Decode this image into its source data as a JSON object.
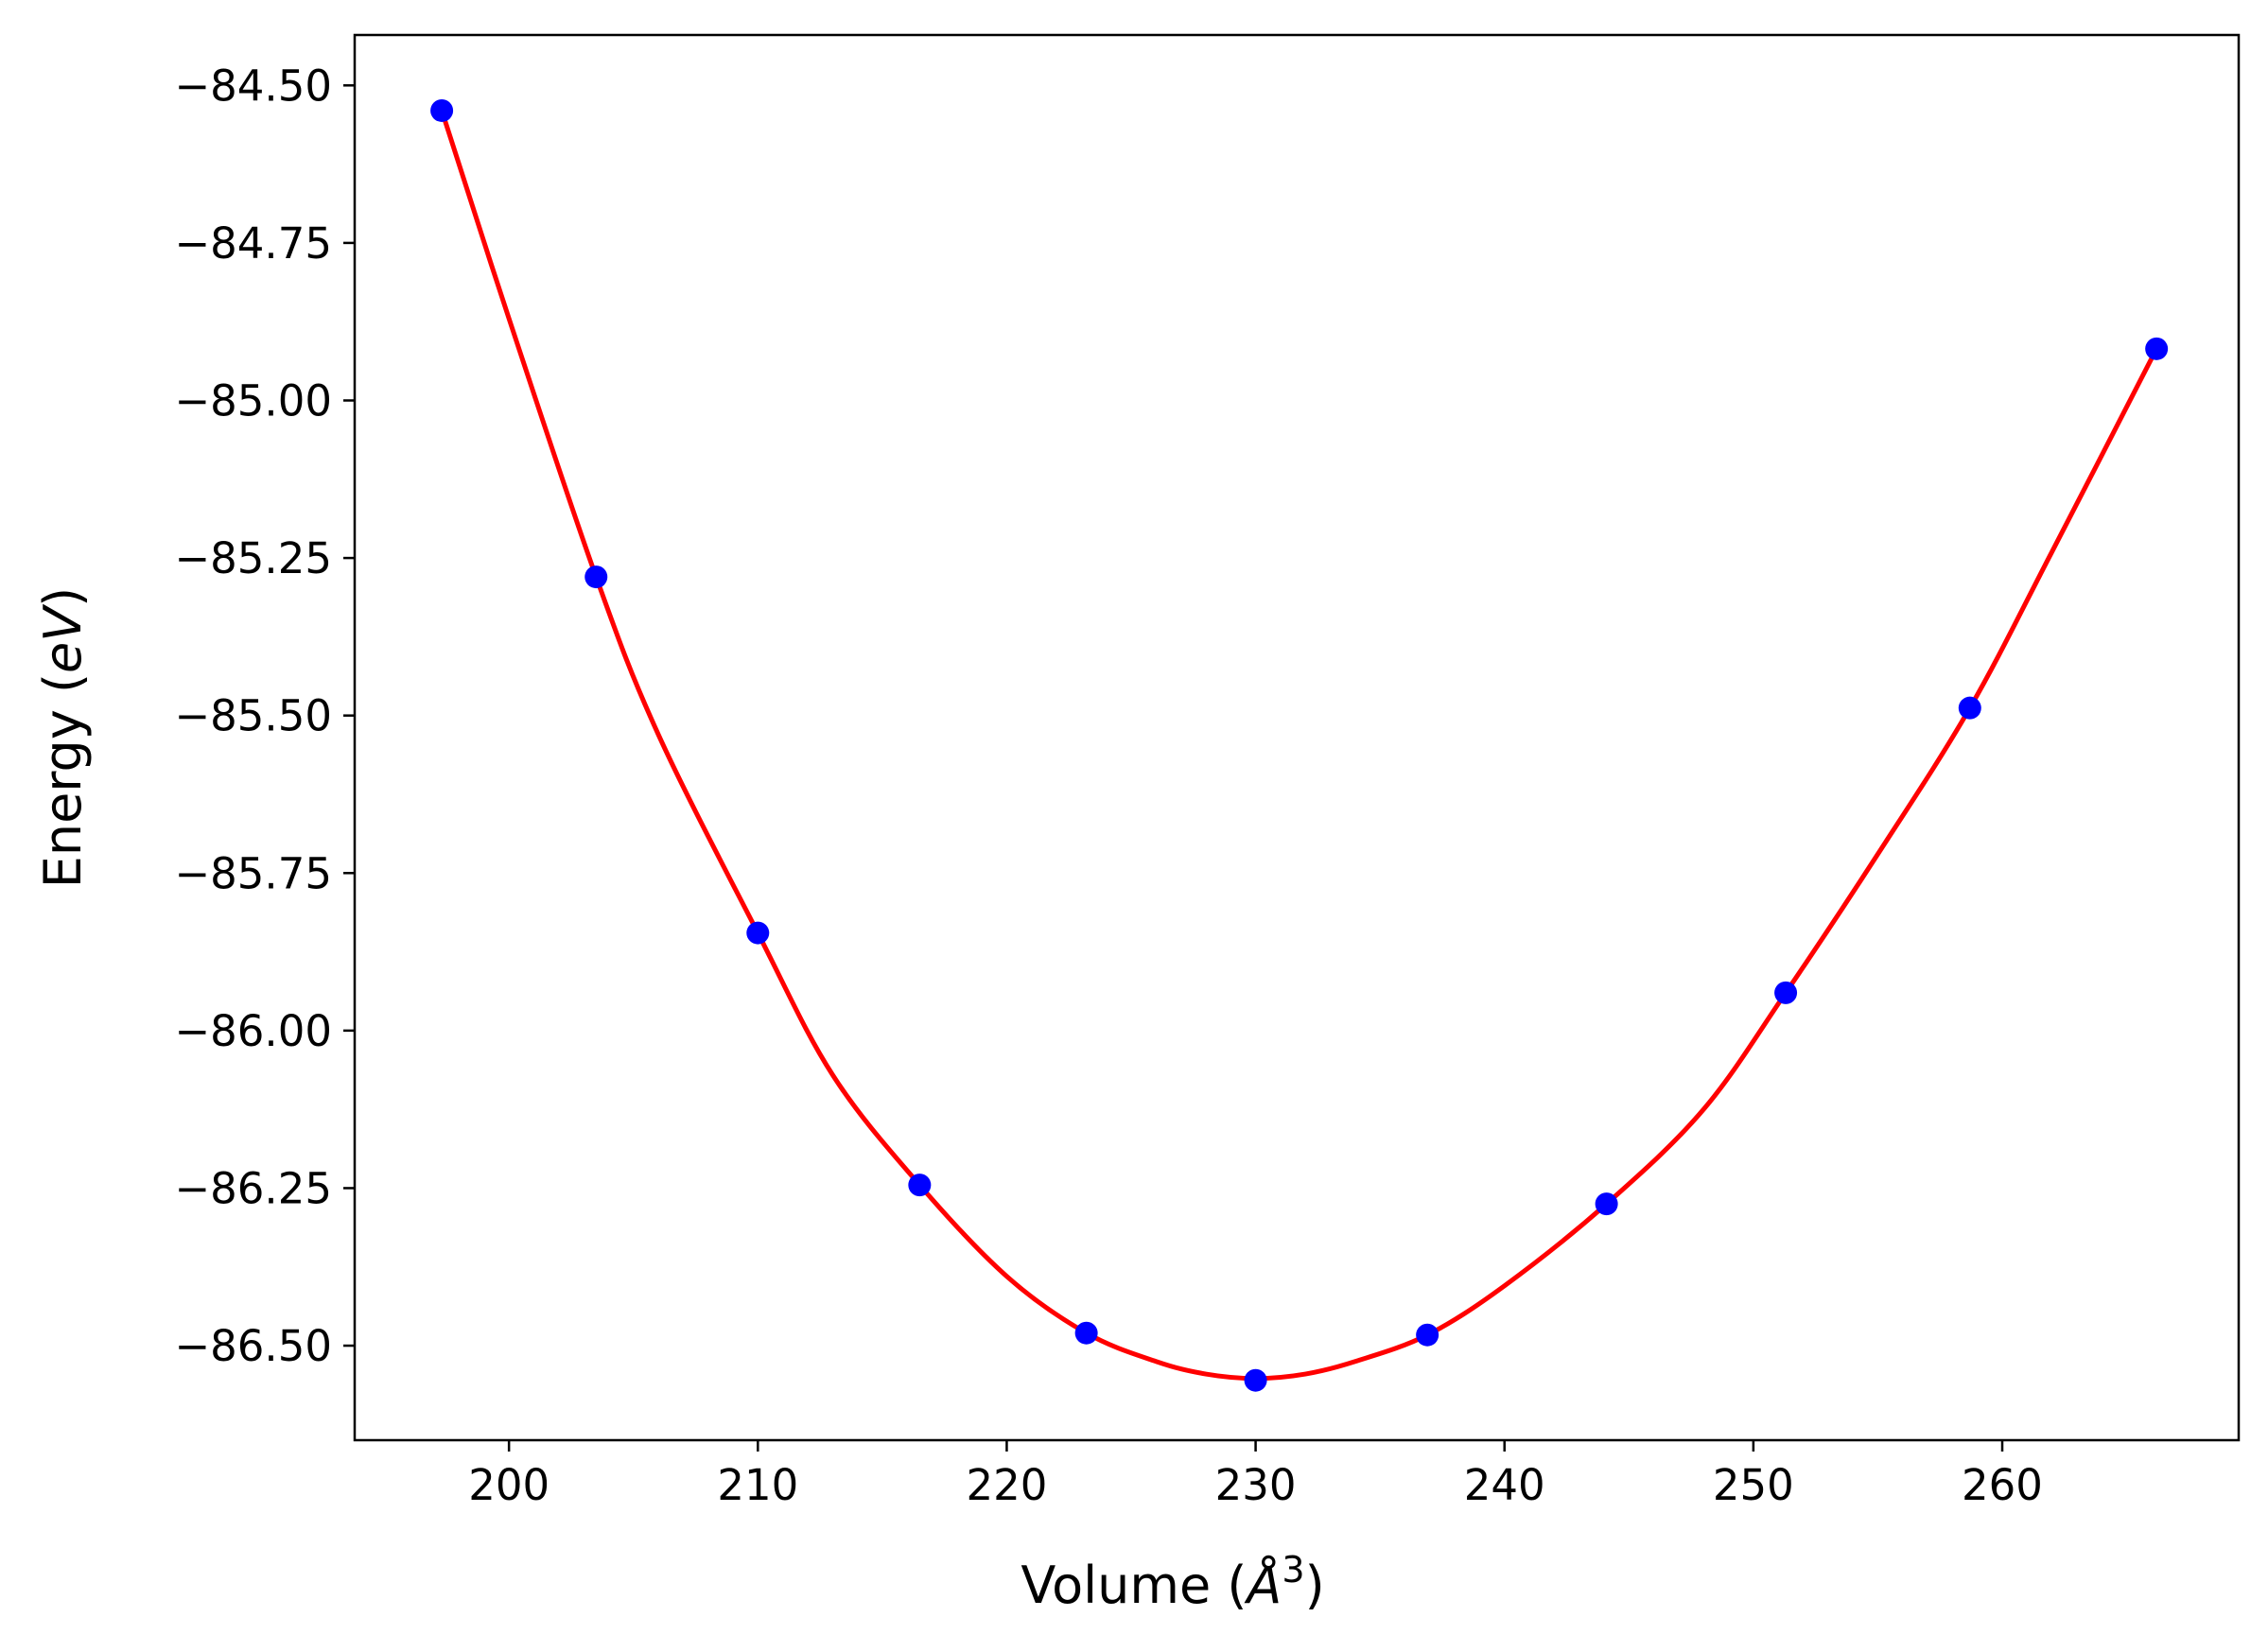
{
  "chart_data": {
    "type": "line",
    "title": "",
    "xlabel": "Volume ($\\AA^3$)",
    "xlabel_parts": {
      "prefix": "Volume (",
      "symbol": "Å",
      "exponent": "3",
      "suffix": ")"
    },
    "ylabel": "Energy ($eV$)",
    "ylabel_parts": {
      "prefix": "Energy (",
      "italic": "eV",
      "suffix": ")"
    },
    "xlim": [
      193.8,
      269.5
    ],
    "ylim": [
      -86.65,
      -84.42
    ],
    "xticks": [
      200,
      210,
      220,
      230,
      240,
      250,
      260
    ],
    "xtick_labels": [
      "200",
      "210",
      "220",
      "230",
      "240",
      "250",
      "260"
    ],
    "yticks": [
      -84.5,
      -84.75,
      -85.0,
      -85.25,
      -85.5,
      -85.75,
      -86.0,
      -86.25,
      -86.5
    ],
    "ytick_labels": [
      "−84.50",
      "−84.75",
      "−85.00",
      "−85.25",
      "−85.50",
      "−85.75",
      "−86.00",
      "−86.25",
      "−86.50"
    ],
    "grid": false,
    "series": [
      {
        "kind": "scatter",
        "color": "#0000ff",
        "x": [
          197.3,
          203.5,
          210.0,
          216.5,
          223.2,
          230.0,
          236.9,
          244.1,
          251.3,
          258.7,
          266.2
        ],
        "y": [
          -84.54,
          -85.28,
          -85.845,
          -86.245,
          -86.48,
          -86.555,
          -86.483,
          -86.275,
          -85.94,
          -85.488,
          -84.918
        ]
      },
      {
        "kind": "fit",
        "color": "#ff0000",
        "x": [
          197.3,
          200.0,
          203.5,
          206.0,
          210.0,
          213.0,
          216.5,
          220.0,
          223.2,
          226.0,
          228.0,
          230.0,
          232.0,
          234.0,
          236.9,
          240.0,
          244.1,
          248.0,
          251.3,
          255.0,
          258.7,
          262.0,
          266.2
        ],
        "y": [
          -84.54,
          -84.87,
          -85.28,
          -85.53,
          -85.845,
          -86.07,
          -86.245,
          -86.39,
          -86.48,
          -86.525,
          -86.545,
          -86.552,
          -86.545,
          -86.525,
          -86.483,
          -86.405,
          -86.275,
          -86.125,
          -85.94,
          -85.72,
          -85.488,
          -85.24,
          -84.918
        ]
      }
    ]
  }
}
